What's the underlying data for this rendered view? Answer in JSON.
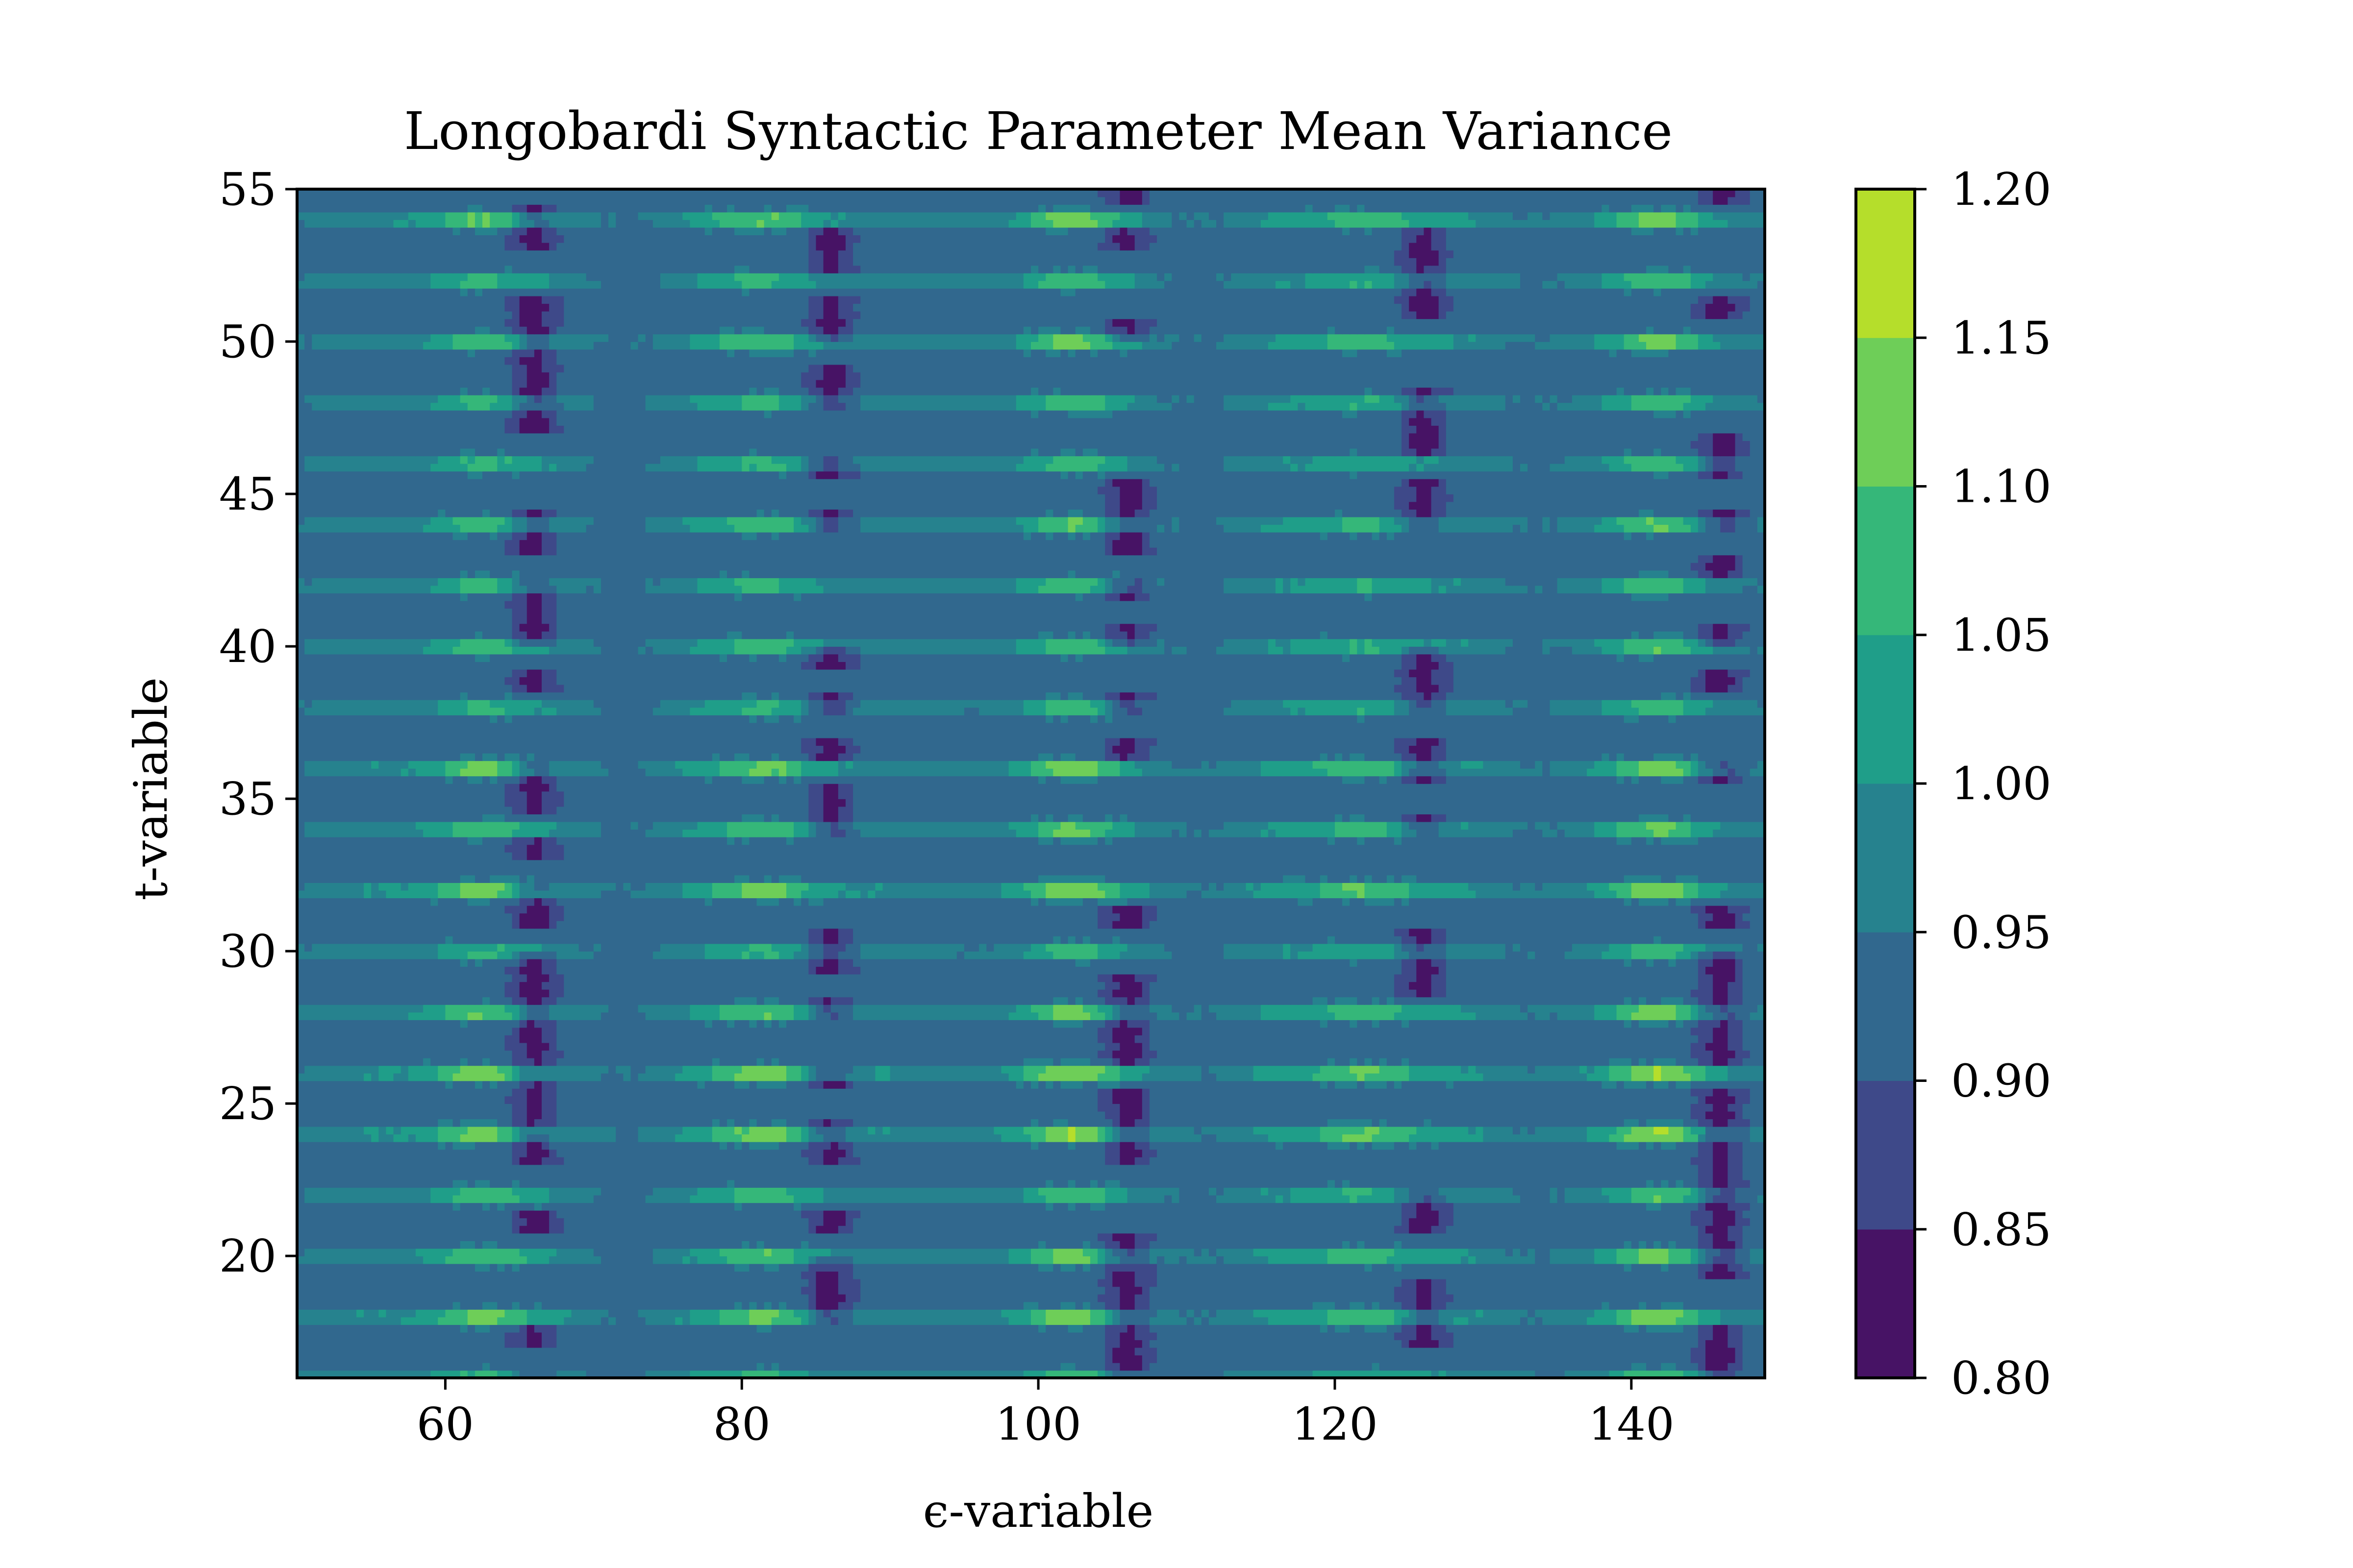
{
  "chart_data": {
    "type": "heatmap",
    "subtype": "filled-contour",
    "title": "Longobardi Syntactic Parameter Mean Variance",
    "xlabel": "ϵ-variable",
    "ylabel": "t-variable",
    "xlim": [
      50,
      149
    ],
    "ylim": [
      16,
      55
    ],
    "x_ticks": [
      60,
      80,
      100,
      120,
      140
    ],
    "y_ticks": [
      20,
      25,
      30,
      35,
      40,
      45,
      50,
      55
    ],
    "colorbar": {
      "levels": [
        0.8,
        0.85,
        0.9,
        0.95,
        1.0,
        1.05,
        1.1,
        1.15,
        1.2
      ],
      "tick_labels": [
        "0.80",
        "0.85",
        "0.90",
        "0.95",
        "1.00",
        "1.05",
        "1.10",
        "1.15",
        "1.20"
      ],
      "colors": [
        "#471365",
        "#3e4989",
        "#31688e",
        "#26828e",
        "#1f9e89",
        "#35b779",
        "#6ece58",
        "#b5de2b",
        "#d8e21a"
      ]
    },
    "field_description": "Approximate variance field: baseline ~0.93, high bands (up to ~1.17) centered near eps = 62, 82, 102, 122, 142, horizontal stripes every 2 t-units; low dips (~0.84) near eps = 66, 86, 106, 126, 146",
    "band_centers_eps": [
      62,
      82,
      102,
      122,
      142
    ],
    "stripe_period_t": 2,
    "baseline_value": 0.93,
    "peak_value": 1.17,
    "trough_value": 0.84
  }
}
